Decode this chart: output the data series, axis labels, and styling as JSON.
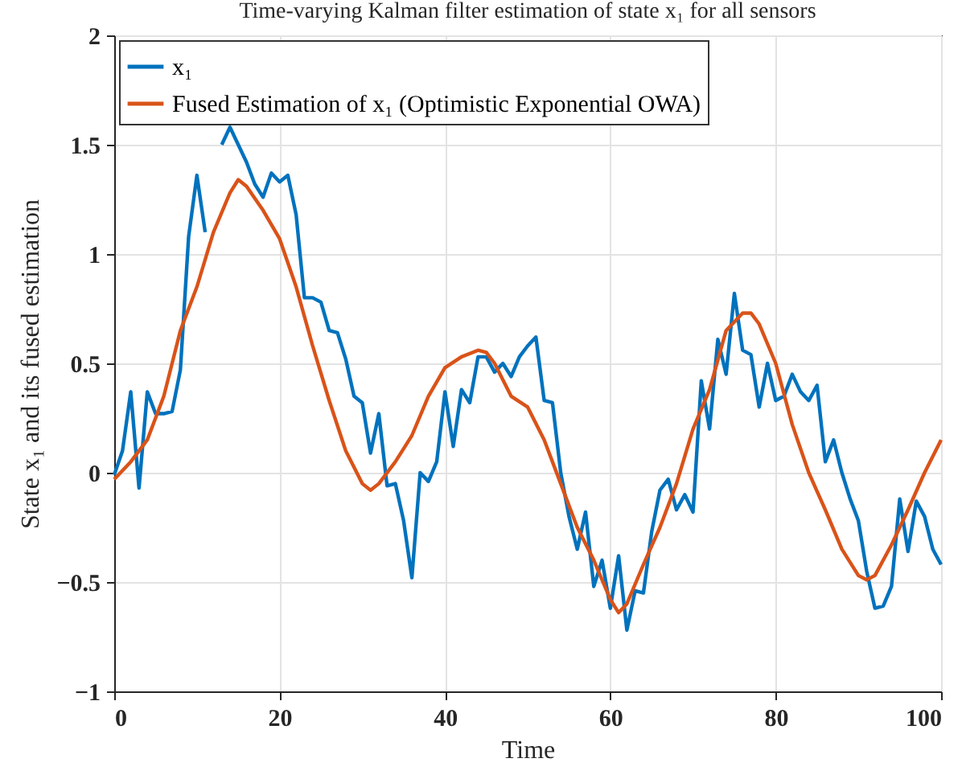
{
  "chart_data": {
    "type": "line",
    "title": "Time-varying Kalman filter estimation of state x₁ for all sensors",
    "xlabel": "Time",
    "ylabel": "State x₁ and its fused estimation",
    "x": [
      0,
      1,
      2,
      3,
      4,
      5,
      6,
      7,
      8,
      9,
      10,
      11,
      12,
      13,
      14,
      15,
      16,
      17,
      18,
      19,
      20,
      21,
      22,
      23,
      24,
      25,
      26,
      27,
      28,
      29,
      30,
      31,
      32,
      33,
      34,
      35,
      36,
      37,
      38,
      39,
      40,
      41,
      42,
      43,
      44,
      45,
      46,
      47,
      48,
      49,
      50,
      51,
      52,
      53,
      54,
      55,
      56,
      57,
      58,
      59,
      60,
      61,
      62,
      63,
      64,
      65,
      66,
      67,
      68,
      69,
      70,
      71,
      72,
      73,
      74,
      75,
      76,
      77,
      78,
      79,
      80,
      81,
      82,
      83,
      84,
      85,
      86,
      87,
      88,
      89,
      90,
      91,
      92,
      93,
      94,
      95,
      96,
      97,
      98,
      99,
      100
    ],
    "series": [
      {
        "name": "x₁",
        "color": "#0072bd",
        "values": [
          -0.01,
          0.1,
          0.37,
          -0.07,
          0.37,
          0.27,
          0.27,
          0.28,
          0.47,
          1.08,
          1.36,
          1.1,
          null,
          1.5,
          1.58,
          1.5,
          1.42,
          1.32,
          1.26,
          1.37,
          1.33,
          1.36,
          1.18,
          0.8,
          0.8,
          0.78,
          0.65,
          0.64,
          0.52,
          0.35,
          0.32,
          0.09,
          0.27,
          -0.06,
          -0.05,
          -0.22,
          -0.48,
          0,
          -0.04,
          0.05,
          0.37,
          0.12,
          0.38,
          0.32,
          0.53,
          0.53,
          0.46,
          0.5,
          0.44,
          0.53,
          0.58,
          0.62,
          0.33,
          0.32,
          0,
          -0.2,
          -0.35,
          -0.18,
          -0.52,
          -0.4,
          -0.62,
          -0.38,
          -0.72,
          -0.54,
          -0.55,
          -0.27,
          -0.08,
          -0.03,
          -0.17,
          -0.1,
          -0.18,
          0.42,
          0.2,
          0.61,
          0.45,
          0.82,
          0.56,
          0.54,
          0.3,
          0.5,
          0.33,
          0.35,
          0.45,
          0.37,
          0.33,
          0.4,
          0.05,
          0.15,
          0,
          -0.12,
          -0.22,
          -0.45,
          -0.62,
          -0.61,
          -0.52,
          -0.12,
          -0.36,
          -0.13,
          -0.2,
          -0.35,
          -0.42
        ]
      },
      {
        "name": "Fused Estimation of x₁ (Optimistic Exponential OWA)",
        "color": "#d95319",
        "x": [
          0,
          2,
          4,
          6,
          8,
          10,
          12,
          14,
          15,
          16,
          18,
          20,
          22,
          24,
          26,
          28,
          30,
          31,
          32,
          34,
          36,
          38,
          40,
          42,
          44,
          45,
          46,
          48,
          50,
          52,
          54,
          56,
          58,
          60,
          61,
          62,
          64,
          66,
          68,
          70,
          72,
          74,
          76,
          77,
          78,
          80,
          82,
          84,
          86,
          88,
          90,
          91,
          92,
          94,
          96,
          98,
          100
        ],
        "values": [
          -0.03,
          0.05,
          0.15,
          0.35,
          0.65,
          0.85,
          1.1,
          1.28,
          1.34,
          1.31,
          1.2,
          1.07,
          0.85,
          0.58,
          0.33,
          0.1,
          -0.05,
          -0.08,
          -0.05,
          0.05,
          0.17,
          0.35,
          0.48,
          0.53,
          0.56,
          0.55,
          0.5,
          0.35,
          0.3,
          0.15,
          -0.05,
          -0.25,
          -0.4,
          -0.58,
          -0.64,
          -0.6,
          -0.42,
          -0.25,
          -0.05,
          0.2,
          0.38,
          0.65,
          0.73,
          0.73,
          0.68,
          0.5,
          0.22,
          0,
          -0.17,
          -0.35,
          -0.47,
          -0.49,
          -0.47,
          -0.33,
          -0.17,
          0,
          0.15
        ]
      }
    ],
    "xlim": [
      0,
      100
    ],
    "xticks": [
      0,
      20,
      40,
      60,
      80,
      100
    ],
    "ylim": [
      -1,
      2
    ],
    "yticks": [
      -1,
      -0.5,
      0,
      0.5,
      1,
      1.5,
      2
    ],
    "grid": true,
    "legend": "top left",
    "line_style": "solid",
    "marker": "none"
  }
}
